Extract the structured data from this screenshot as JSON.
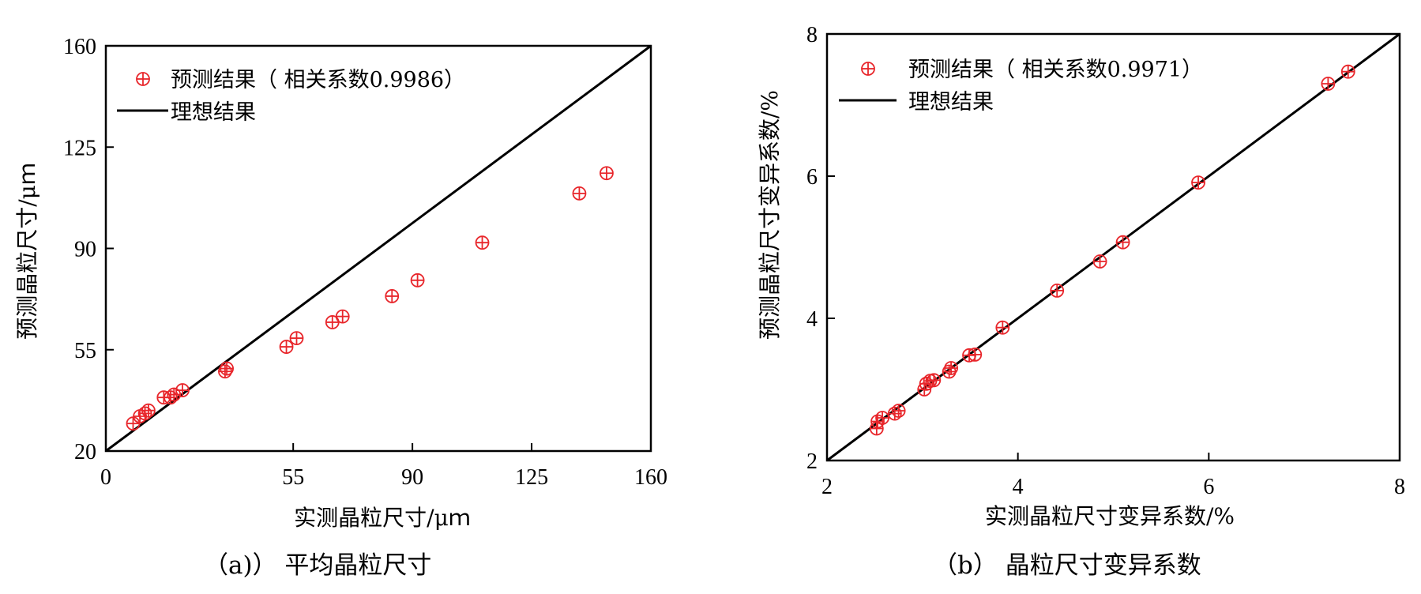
{
  "chart_data": [
    {
      "type": "scatter",
      "caption": "（a)）  平均晶粒尺寸",
      "xlabel": "实测晶粒尺寸/μｍ",
      "ylabel": "预测晶粒尺寸/μｍ",
      "xlim": [
        0,
        160
      ],
      "ylim": [
        20,
        160
      ],
      "xticks": [
        0,
        55,
        90,
        125,
        160
      ],
      "yticks": [
        20,
        55,
        90,
        125,
        160
      ],
      "legend_position": "top-left",
      "series": [
        {
          "name": "预测结果（ 相关系数0.9986）",
          "kind": "scatter",
          "marker": "circle-plus",
          "color": "#e8262b",
          "points": [
            [
              8,
              29.5
            ],
            [
              10,
              32
            ],
            [
              11.5,
              33
            ],
            [
              12.5,
              34
            ],
            [
              17,
              38.5
            ],
            [
              19,
              38.5
            ],
            [
              20,
              39.5
            ],
            [
              22.5,
              41
            ],
            [
              35,
              47.5
            ],
            [
              35.5,
              48.5
            ],
            [
              53,
              56
            ],
            [
              56,
              59
            ],
            [
              66.5,
              64.5
            ],
            [
              69.5,
              66.5
            ],
            [
              84,
              73.5
            ],
            [
              91.5,
              79
            ],
            [
              110.5,
              92
            ],
            [
              139,
              109
            ],
            [
              147,
              116
            ]
          ]
        },
        {
          "name": "理想结果",
          "kind": "line",
          "color": "#000000",
          "points": [
            [
              0,
              20
            ],
            [
              160,
              160
            ]
          ]
        }
      ]
    },
    {
      "type": "scatter",
      "caption": "（b）  晶粒尺寸变异系数",
      "xlabel": "实测晶粒尺寸变异系数/%",
      "ylabel": "预测晶粒尺寸变异系数/%",
      "xlim": [
        2,
        8
      ],
      "ylim": [
        2,
        8
      ],
      "xticks": [
        2,
        4,
        6,
        8
      ],
      "yticks": [
        2,
        4,
        6,
        8
      ],
      "legend_position": "top-left",
      "series": [
        {
          "name": "预测结果（ 相关系数0.9971）",
          "kind": "scatter",
          "marker": "circle-plus",
          "color": "#e8262b",
          "points": [
            [
              2.52,
              2.45
            ],
            [
              2.53,
              2.55
            ],
            [
              2.58,
              2.6
            ],
            [
              2.71,
              2.66
            ],
            [
              2.75,
              2.7
            ],
            [
              3.02,
              3.0
            ],
            [
              3.04,
              3.08
            ],
            [
              3.08,
              3.12
            ],
            [
              3.12,
              3.13
            ],
            [
              3.28,
              3.25
            ],
            [
              3.3,
              3.3
            ],
            [
              3.49,
              3.48
            ],
            [
              3.55,
              3.49
            ],
            [
              3.84,
              3.87
            ],
            [
              4.41,
              4.39
            ],
            [
              4.86,
              4.8
            ],
            [
              5.1,
              5.07
            ],
            [
              5.89,
              5.91
            ],
            [
              7.25,
              7.3
            ],
            [
              7.46,
              7.47
            ]
          ]
        },
        {
          "name": "理想结果",
          "kind": "line",
          "color": "#000000",
          "points": [
            [
              2,
              2
            ],
            [
              8,
              8
            ]
          ]
        }
      ]
    }
  ]
}
